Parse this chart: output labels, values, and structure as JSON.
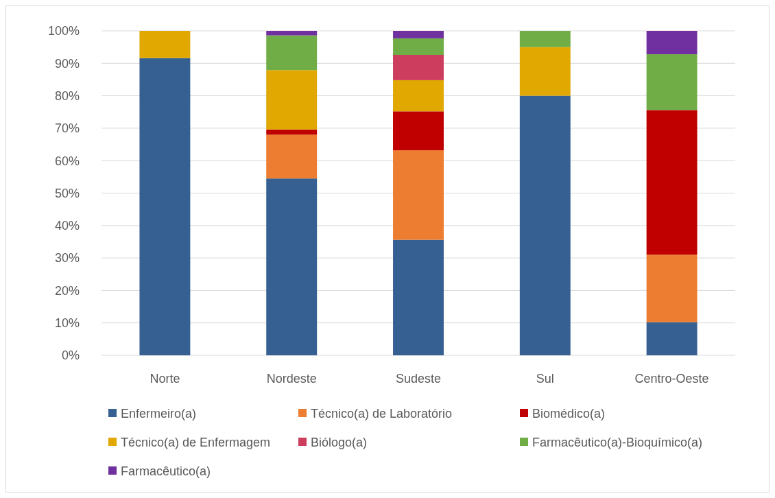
{
  "chart_data": {
    "type": "bar",
    "stacked": true,
    "categories": [
      "Norte",
      "Nordeste",
      "Sudeste",
      "Sul",
      "Centro-Oeste"
    ],
    "series": [
      {
        "name": "Enfermeiro(a)",
        "color": "#366092",
        "values": [
          91.6,
          54.5,
          35.6,
          80,
          10.2
        ]
      },
      {
        "name": "Técnico(a) de Laboratório",
        "color": "#ed7d31",
        "values": [
          null,
          13.5,
          27.6,
          null,
          20.8
        ]
      },
      {
        "name": "Biomédico(a)",
        "color": "#c00000",
        "values": [
          null,
          1.6,
          12.0,
          null,
          44.6
        ]
      },
      {
        "name": "Técnico(a) de Enfermagem",
        "color": "#e0a800",
        "values": [
          8.4,
          18.3,
          9.6,
          15,
          null
        ]
      },
      {
        "name": "Biólogo(a)",
        "color": "#cc3d5e",
        "values": [
          null,
          null,
          7.8,
          null,
          null
        ]
      },
      {
        "name": "Farmacêutico(a)-Bioquímico(a)",
        "color": "#70ad47",
        "values": [
          null,
          10.7,
          5.1,
          5,
          17.2
        ]
      },
      {
        "name": "Farmacêutico(a)",
        "color": "#7030a0",
        "values": [
          null,
          1.4,
          2.3,
          null,
          7.2
        ]
      }
    ],
    "ylim": [
      0,
      100
    ],
    "yticks": [
      {
        "value": 0,
        "label": "0%"
      },
      {
        "value": 10,
        "label": "10%"
      },
      {
        "value": 20,
        "label": "20%"
      },
      {
        "value": 30,
        "label": "30%"
      },
      {
        "value": 40,
        "label": "40%"
      },
      {
        "value": 50,
        "label": "50%"
      },
      {
        "value": 60,
        "label": "60%"
      },
      {
        "value": 70,
        "label": "70%"
      },
      {
        "value": 80,
        "label": "80%"
      },
      {
        "value": 90,
        "label": "90%"
      },
      {
        "value": 100,
        "label": "100%"
      }
    ],
    "grid": "y",
    "legend": "bottom"
  }
}
